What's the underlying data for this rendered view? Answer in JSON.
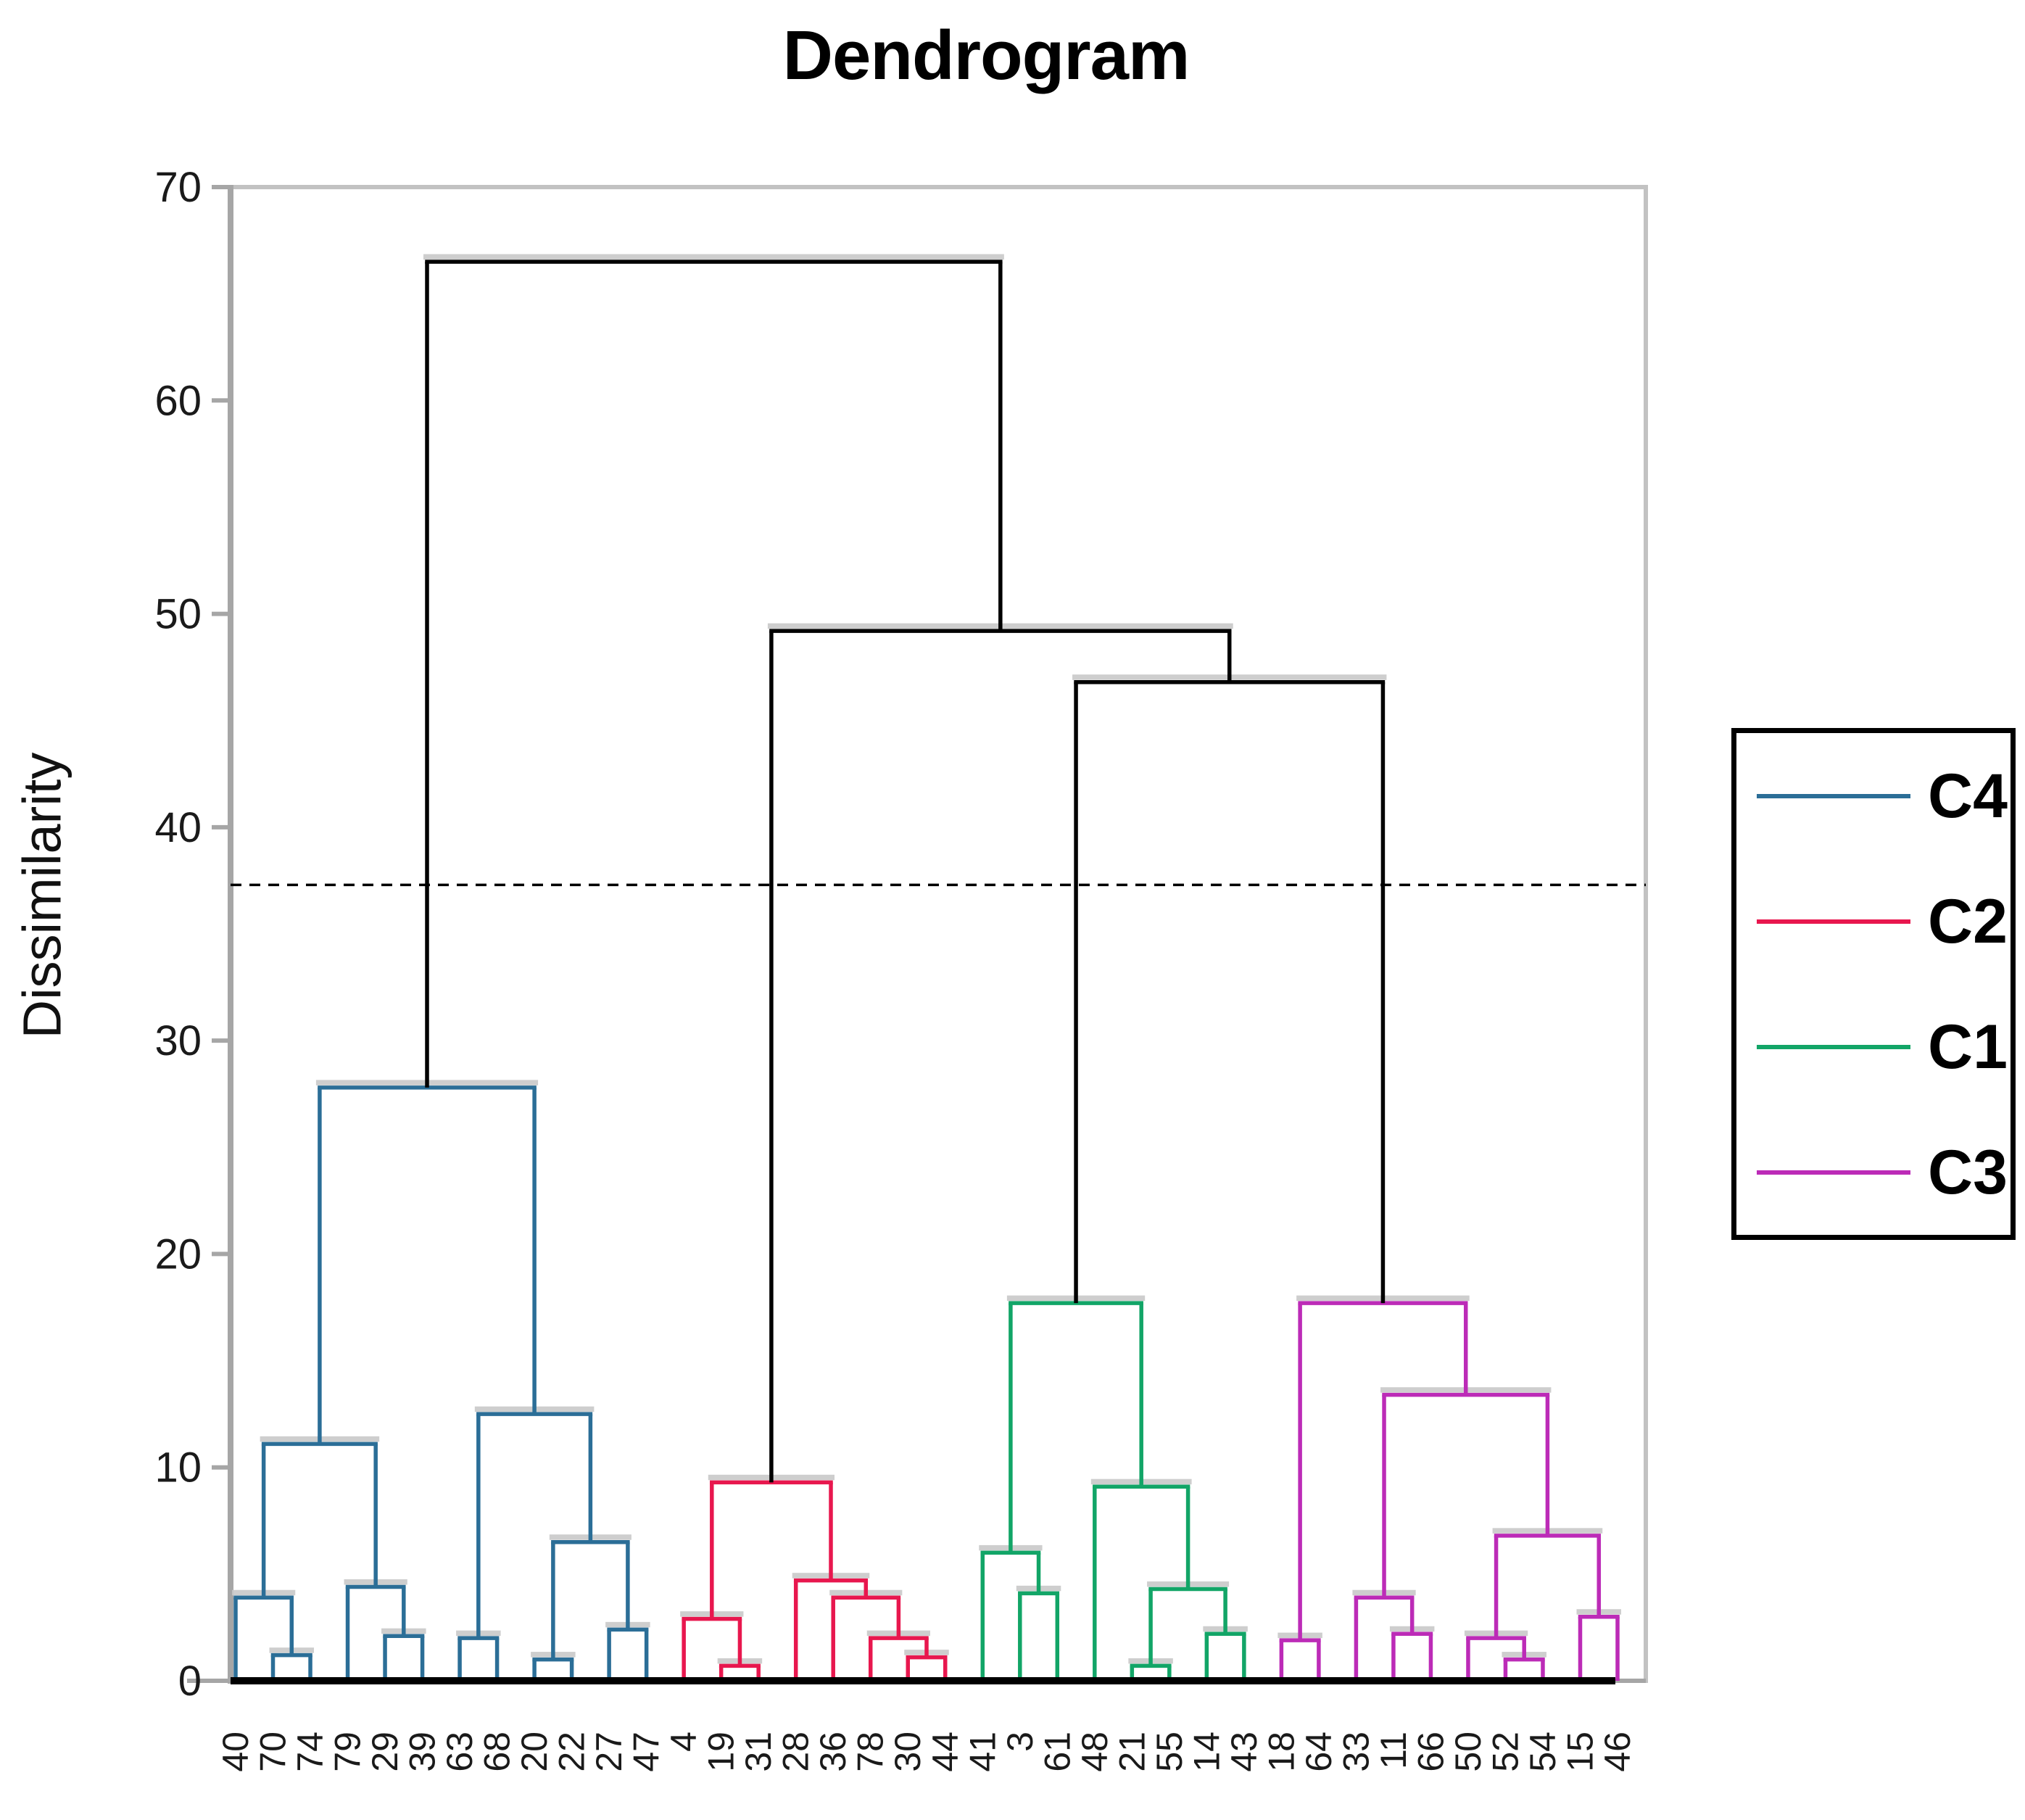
{
  "title": "Dendrogram",
  "y_axis": {
    "label": "Dissimilarity",
    "ticks": [
      0,
      10,
      20,
      30,
      40,
      50,
      60,
      70
    ],
    "min": 0,
    "max": 70
  },
  "legend": {
    "entries": [
      {
        "label": "C4",
        "color": "#2B6E97"
      },
      {
        "label": "C2",
        "color": "#E8174E"
      },
      {
        "label": "C1",
        "color": "#12A567"
      },
      {
        "label": "C3",
        "color": "#BC2BB7"
      }
    ]
  },
  "chart_data": {
    "type": "dendrogram",
    "title": "Dendrogram",
    "ylabel": "Dissimilarity",
    "ylim": [
      0,
      70
    ],
    "yticks": [
      0,
      10,
      20,
      30,
      40,
      50,
      60,
      70
    ],
    "grid": false,
    "legend_position": "right",
    "cutoff_line": 37.3,
    "cluster_colors": {
      "C4": "#2B6E97",
      "C2": "#E8174E",
      "C1": "#12A567",
      "C3": "#BC2BB7",
      "black": "#000000"
    },
    "leaf_order": [
      "40",
      "70",
      "74",
      "79",
      "29",
      "39",
      "63",
      "68",
      "20",
      "22",
      "27",
      "47",
      "4",
      "19",
      "31",
      "28",
      "36",
      "78",
      "30",
      "44",
      "41",
      "3",
      "61",
      "48",
      "21",
      "55",
      "14",
      "43",
      "18",
      "64",
      "33",
      "11",
      "66",
      "50",
      "52",
      "54",
      "15",
      "46"
    ],
    "links": [
      {
        "id": "n1",
        "cluster": "C4",
        "a": "70",
        "b": "74",
        "h": 1.2
      },
      {
        "id": "n2",
        "cluster": "C4",
        "a": "40",
        "b": "n1",
        "h": 3.9
      },
      {
        "id": "n3",
        "cluster": "C4",
        "a": "29",
        "b": "39",
        "h": 2.1
      },
      {
        "id": "n4",
        "cluster": "C4",
        "a": "79",
        "b": "n3",
        "h": 4.4
      },
      {
        "id": "n5",
        "cluster": "C4",
        "a": "n2",
        "b": "n4",
        "h": 11.1
      },
      {
        "id": "n6",
        "cluster": "C4",
        "a": "63",
        "b": "68",
        "h": 2.0
      },
      {
        "id": "n7",
        "cluster": "C4",
        "a": "20",
        "b": "22",
        "h": 1.0
      },
      {
        "id": "n8",
        "cluster": "C4",
        "a": "27",
        "b": "47",
        "h": 2.4
      },
      {
        "id": "n9",
        "cluster": "C4",
        "a": "n7",
        "b": "n8",
        "h": 6.5
      },
      {
        "id": "n10",
        "cluster": "C4",
        "a": "n6",
        "b": "n9",
        "h": 12.5
      },
      {
        "id": "n11",
        "cluster": "C4",
        "a": "n5",
        "b": "n10",
        "h": 27.8
      },
      {
        "id": "n12",
        "cluster": "C2",
        "a": "19",
        "b": "31",
        "h": 0.7
      },
      {
        "id": "n13",
        "cluster": "C2",
        "a": "4",
        "b": "n12",
        "h": 2.9
      },
      {
        "id": "n14",
        "cluster": "C2",
        "a": "30",
        "b": "44",
        "h": 1.1
      },
      {
        "id": "n15",
        "cluster": "C2",
        "a": "78",
        "b": "n14",
        "h": 2.0
      },
      {
        "id": "n16",
        "cluster": "C2",
        "a": "36",
        "b": "n15",
        "h": 3.9
      },
      {
        "id": "n17",
        "cluster": "C2",
        "a": "28",
        "b": "n16",
        "h": 4.7
      },
      {
        "id": "n18",
        "cluster": "C2",
        "a": "n13",
        "b": "n17",
        "h": 9.3
      },
      {
        "id": "n19",
        "cluster": "C1",
        "a": "3",
        "b": "61",
        "h": 4.1
      },
      {
        "id": "n20",
        "cluster": "C1",
        "a": "41",
        "b": "n19",
        "h": 6.0
      },
      {
        "id": "n21",
        "cluster": "C1",
        "a": "21",
        "b": "55",
        "h": 0.7
      },
      {
        "id": "n22",
        "cluster": "C1",
        "a": "14",
        "b": "43",
        "h": 2.2
      },
      {
        "id": "n23",
        "cluster": "C1",
        "a": "n21",
        "b": "n22",
        "h": 4.3
      },
      {
        "id": "n24",
        "cluster": "C1",
        "a": "48",
        "b": "n23",
        "h": 9.1
      },
      {
        "id": "n25",
        "cluster": "C1",
        "a": "n20",
        "b": "n24",
        "h": 17.7
      },
      {
        "id": "n26",
        "cluster": "C3",
        "a": "18",
        "b": "64",
        "h": 1.9
      },
      {
        "id": "n27",
        "cluster": "C3",
        "a": "11",
        "b": "66",
        "h": 2.2
      },
      {
        "id": "n28",
        "cluster": "C3",
        "a": "33",
        "b": "n27",
        "h": 3.9
      },
      {
        "id": "n29",
        "cluster": "C3",
        "a": "52",
        "b": "54",
        "h": 1.0
      },
      {
        "id": "n30",
        "cluster": "C3",
        "a": "50",
        "b": "n29",
        "h": 2.0
      },
      {
        "id": "n31",
        "cluster": "C3",
        "a": "15",
        "b": "46",
        "h": 3.0
      },
      {
        "id": "n32",
        "cluster": "C3",
        "a": "n30",
        "b": "n31",
        "h": 6.8
      },
      {
        "id": "n33",
        "cluster": "C3",
        "a": "n28",
        "b": "n32",
        "h": 13.4
      },
      {
        "id": "n34",
        "cluster": "C3",
        "a": "n26",
        "b": "n33",
        "h": 17.7
      },
      {
        "id": "n35",
        "cluster": "black",
        "a": "n25",
        "b": "n34",
        "h": 46.8
      },
      {
        "id": "n36",
        "cluster": "black",
        "a": "n18",
        "b": "n35",
        "h": 49.2
      },
      {
        "id": "n37",
        "cluster": "black",
        "a": "n11",
        "b": "n36",
        "h": 66.5
      }
    ]
  }
}
